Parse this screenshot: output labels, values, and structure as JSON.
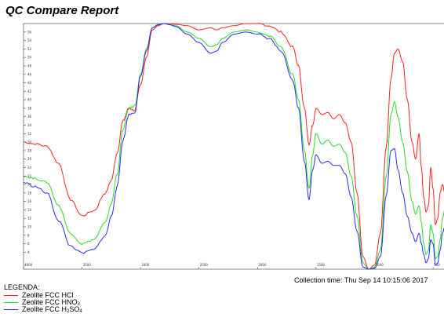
{
  "report_title": "QC Compare Report",
  "collection_time": "Collection time: Thu Sep 14 10:15:06 2017",
  "legend_title": "LEGENDA:",
  "legend_items": [
    {
      "label": "Zeolite FCC HCl",
      "color": "#ff2020"
    },
    {
      "label": "Zeolite FCC HNO",
      "sub": "3",
      "color": "#22dd22"
    },
    {
      "label": "Zeolite FCC H",
      "sub": "2",
      "label_mid": "SO",
      "sub2": "4",
      "color": "#2a2aff"
    }
  ],
  "chart_data": {
    "type": "line",
    "title": "QC Compare Report",
    "x_reversed": true,
    "xlim": [
      4000,
      400
    ],
    "ylim": [
      0,
      58
    ],
    "x_ticks": [
      "4000",
      "3500",
      "3000",
      "2500",
      "2000",
      "1500",
      "1000",
      "500"
    ],
    "y_ticks": [
      "4",
      "6",
      "8",
      "10",
      "12",
      "14",
      "16",
      "18",
      "20",
      "22",
      "24",
      "26",
      "28",
      "30",
      "32",
      "34",
      "36",
      "38",
      "40",
      "42",
      "44",
      "46",
      "48",
      "50",
      "52",
      "54",
      "56"
    ],
    "grid": false,
    "series": [
      {
        "name": "Zeolite FCC HCl",
        "color": "#ff2020",
        "x": [
          4000,
          3900,
          3800,
          3700,
          3600,
          3500,
          3400,
          3300,
          3250,
          3200,
          3150,
          3100,
          3050,
          3000,
          2950,
          2900,
          2850,
          2800,
          2750,
          2700,
          2600,
          2500,
          2400,
          2350,
          2300,
          2200,
          2100,
          2000,
          1900,
          1800,
          1700,
          1650,
          1600,
          1560,
          1530,
          1500,
          1450,
          1400,
          1350,
          1300,
          1250,
          1200,
          1150,
          1100,
          1050,
          1000,
          950,
          900,
          860,
          830,
          800,
          760,
          720,
          680,
          650,
          620,
          600,
          580,
          560,
          540,
          520,
          500,
          480,
          460,
          440,
          420,
          400
        ],
        "y": [
          30,
          29.6,
          29.0,
          25.0,
          16.5,
          12.6,
          13.8,
          18.0,
          21.0,
          27.5,
          35.0,
          38.0,
          37.5,
          43.5,
          50.0,
          56.5,
          57.5,
          58.0,
          58.0,
          57.8,
          57.5,
          56.5,
          57.0,
          56.5,
          57.0,
          57.5,
          58.0,
          58.0,
          57.5,
          56.0,
          52.5,
          48.0,
          38.0,
          29.5,
          34.0,
          38.0,
          36.5,
          37.0,
          35.5,
          36.5,
          34.5,
          30.0,
          18.0,
          3.0,
          0.0,
          1.0,
          8.5,
          29.0,
          45.0,
          51.0,
          52.0,
          49.0,
          40.0,
          30.0,
          26.0,
          32.0,
          24.0,
          17.0,
          13.5,
          15.0,
          24.0,
          19.0,
          10.5,
          12.0,
          18.0,
          20.0,
          18.0
        ]
      },
      {
        "name": "Zeolite FCC HNO3",
        "color": "#22dd22",
        "x": [
          4000,
          3900,
          3800,
          3700,
          3600,
          3500,
          3400,
          3300,
          3250,
          3200,
          3150,
          3100,
          3050,
          3000,
          2950,
          2900,
          2850,
          2800,
          2750,
          2700,
          2600,
          2500,
          2400,
          2350,
          2300,
          2200,
          2100,
          2000,
          1900,
          1800,
          1700,
          1650,
          1600,
          1560,
          1530,
          1500,
          1450,
          1400,
          1350,
          1300,
          1250,
          1200,
          1150,
          1100,
          1050,
          1000,
          950,
          900,
          860,
          830,
          800,
          760,
          720,
          680,
          650,
          620,
          600,
          580,
          560,
          540,
          520,
          500,
          480,
          460,
          440,
          420,
          400
        ],
        "y": [
          22,
          21.4,
          20.5,
          15.0,
          8.5,
          6.0,
          7.0,
          11.0,
          15.5,
          22.5,
          33.0,
          38.0,
          38.5,
          46.0,
          52.0,
          57.0,
          57.8,
          58.0,
          57.8,
          57.5,
          56.0,
          54.5,
          52.5,
          53.0,
          54.5,
          56.0,
          56.5,
          56.0,
          55.0,
          52.5,
          46.0,
          40.0,
          28.0,
          19.0,
          27.0,
          32.0,
          29.5,
          30.5,
          29.0,
          29.5,
          27.5,
          22.0,
          12.5,
          1.5,
          0.0,
          0.5,
          4.5,
          22.0,
          36.5,
          39.5,
          36.0,
          30.0,
          23.0,
          16.0,
          13.0,
          15.0,
          11.0,
          6.0,
          3.5,
          4.5,
          10.5,
          8.5,
          2.5,
          3.0,
          7.0,
          12.0,
          14.0
        ]
      },
      {
        "name": "Zeolite FCC H2SO4",
        "color": "#2a2aff",
        "x": [
          4000,
          3900,
          3800,
          3700,
          3600,
          3500,
          3400,
          3300,
          3250,
          3200,
          3150,
          3100,
          3050,
          3000,
          2950,
          2900,
          2850,
          2800,
          2750,
          2700,
          2600,
          2500,
          2400,
          2350,
          2300,
          2200,
          2100,
          2000,
          1900,
          1800,
          1700,
          1650,
          1600,
          1560,
          1530,
          1500,
          1450,
          1400,
          1350,
          1300,
          1250,
          1200,
          1150,
          1100,
          1050,
          1000,
          950,
          900,
          860,
          830,
          800,
          760,
          720,
          680,
          650,
          620,
          600,
          580,
          560,
          540,
          520,
          500,
          480,
          460,
          440,
          420,
          400
        ],
        "y": [
          20.5,
          19.5,
          18.0,
          11.5,
          5.5,
          3.8,
          4.6,
          8.0,
          12.5,
          19.5,
          30.5,
          36.5,
          37.0,
          45.5,
          51.5,
          57.0,
          57.7,
          58.0,
          57.7,
          57.3,
          55.5,
          53.5,
          51.0,
          51.5,
          53.5,
          55.5,
          56.0,
          55.5,
          54.5,
          51.5,
          44.5,
          38.0,
          25.5,
          16.5,
          23.5,
          27.0,
          25.0,
          25.5,
          24.5,
          24.5,
          22.5,
          17.0,
          9.0,
          0.5,
          0.0,
          0.2,
          3.0,
          17.5,
          28.0,
          28.5,
          23.5,
          18.0,
          12.5,
          8.5,
          6.5,
          8.5,
          6.0,
          3.5,
          1.5,
          2.5,
          7.0,
          6.0,
          1.0,
          1.5,
          4.5,
          8.5,
          10.0
        ]
      }
    ]
  }
}
